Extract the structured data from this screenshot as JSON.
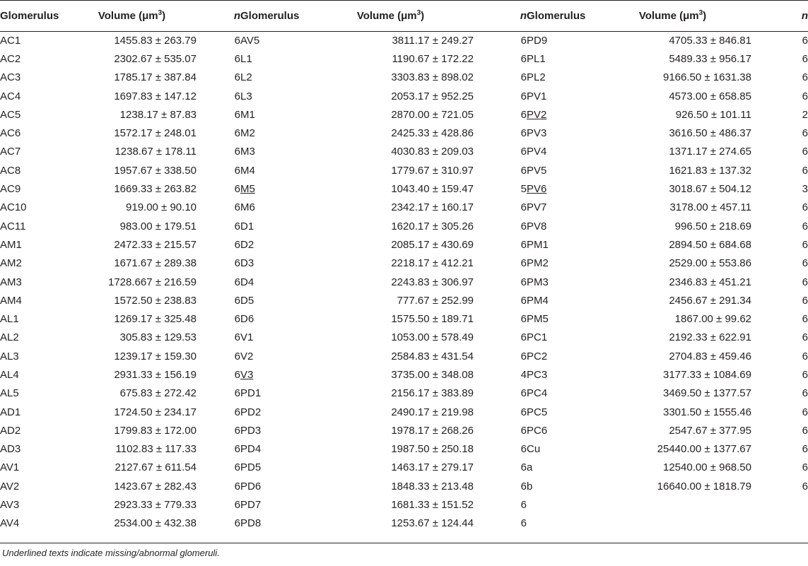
{
  "header": {
    "glomerulus": "Glomerulus",
    "volume": "Volume (μm",
    "volume_sup": "3",
    "volume_close": ")",
    "n": "n"
  },
  "columns": [
    [
      {
        "g": "AC1",
        "v": "1455.83 ± 263.79",
        "n": "6",
        "u": false
      },
      {
        "g": "AC2",
        "v": "2302.67 ± 535.07",
        "n": "6",
        "u": false
      },
      {
        "g": "AC3",
        "v": "1785.17 ± 387.84",
        "n": "6",
        "u": false
      },
      {
        "g": "AC4",
        "v": "1697.83 ± 147.12",
        "n": "6",
        "u": false
      },
      {
        "g": "AC5",
        "v": "1238.17 ± 87.83",
        "n": "6",
        "u": false
      },
      {
        "g": "AC6",
        "v": "1572.17 ± 248.01",
        "n": "6",
        "u": false
      },
      {
        "g": "AC7",
        "v": "1238.67 ± 178.11",
        "n": "6",
        "u": false
      },
      {
        "g": "AC8",
        "v": "1957.67 ± 338.50",
        "n": "6",
        "u": false
      },
      {
        "g": "AC9",
        "v": "1669.33 ± 263.82",
        "n": "6",
        "u": false
      },
      {
        "g": "AC10",
        "v": "919.00 ± 90.10",
        "n": "6",
        "u": false
      },
      {
        "g": "AC11",
        "v": "983.00 ± 179.51",
        "n": "6",
        "u": false
      },
      {
        "g": "AM1",
        "v": "2472.33 ± 215.57",
        "n": "6",
        "u": false
      },
      {
        "g": "AM2",
        "v": "1671.67 ± 289.38",
        "n": "6",
        "u": false
      },
      {
        "g": "AM3",
        "v": "1728.667 ± 216.59",
        "n": "6",
        "u": false
      },
      {
        "g": "AM4",
        "v": "1572.50 ± 238.83",
        "n": "6",
        "u": false
      },
      {
        "g": "AL1",
        "v": "1269.17 ± 325.48",
        "n": "6",
        "u": false
      },
      {
        "g": "AL2",
        "v": "305.83 ± 129.53",
        "n": "6",
        "u": false
      },
      {
        "g": "AL3",
        "v": "1239.17 ± 159.30",
        "n": "6",
        "u": false
      },
      {
        "g": "AL4",
        "v": "2931.33 ± 156.19",
        "n": "6",
        "u": false
      },
      {
        "g": "AL5",
        "v": "675.83 ± 272.42",
        "n": "6",
        "u": false
      },
      {
        "g": "AD1",
        "v": "1724.50 ± 234.17",
        "n": "6",
        "u": false
      },
      {
        "g": "AD2",
        "v": "1799.83 ± 172.00",
        "n": "6",
        "u": false
      },
      {
        "g": "AD3",
        "v": "1102.83 ± 117.33",
        "n": "6",
        "u": false
      },
      {
        "g": "AV1",
        "v": "2127.67 ± 611.54",
        "n": "6",
        "u": false
      },
      {
        "g": "AV2",
        "v": "1423.67 ± 282.43",
        "n": "6",
        "u": false
      },
      {
        "g": "AV3",
        "v": "2923.33 ± 779.33",
        "n": "6",
        "u": false
      },
      {
        "g": "AV4",
        "v": "2534.00 ± 432.38",
        "n": "6",
        "u": false
      }
    ],
    [
      {
        "g": "AV5",
        "v": "3811.17 ± 249.27",
        "n": "6",
        "u": false
      },
      {
        "g": "L1",
        "v": "1190.67 ± 172.22",
        "n": "6",
        "u": false
      },
      {
        "g": "L2",
        "v": "3303.83 ± 898.02",
        "n": "6",
        "u": false
      },
      {
        "g": "L3",
        "v": "2053.17 ± 952.25",
        "n": "6",
        "u": false
      },
      {
        "g": "M1",
        "v": "2870.00 ± 721.05",
        "n": "6",
        "u": false
      },
      {
        "g": "M2",
        "v": "2425.33 ± 428.86",
        "n": "6",
        "u": false
      },
      {
        "g": "M3",
        "v": "4030.83 ± 209.03",
        "n": "6",
        "u": false
      },
      {
        "g": "M4",
        "v": "1779.67 ± 310.97",
        "n": "6",
        "u": false
      },
      {
        "g": "M5",
        "v": "1043.40 ± 159.47",
        "n": "5",
        "u": true
      },
      {
        "g": "M6",
        "v": "2342.17 ± 160.17",
        "n": "6",
        "u": false
      },
      {
        "g": "D1",
        "v": "1620.17 ± 305.26",
        "n": "6",
        "u": false
      },
      {
        "g": "D2",
        "v": "2085.17 ± 430.69",
        "n": "6",
        "u": false
      },
      {
        "g": "D3",
        "v": "2218.17 ± 412.21",
        "n": "6",
        "u": false
      },
      {
        "g": "D4",
        "v": "2243.83 ± 306.97",
        "n": "6",
        "u": false
      },
      {
        "g": "D5",
        "v": "777.67 ± 252.99",
        "n": "6",
        "u": false
      },
      {
        "g": "D6",
        "v": "1575.50 ± 189.71",
        "n": "6",
        "u": false
      },
      {
        "g": "V1",
        "v": "1053.00 ± 578.49",
        "n": "6",
        "u": false
      },
      {
        "g": "V2",
        "v": "2584.83 ± 431.54",
        "n": "6",
        "u": false
      },
      {
        "g": "V3",
        "v": "3735.00 ± 348.08",
        "n": "4",
        "u": true
      },
      {
        "g": "PD1",
        "v": "2156.17 ± 383.89",
        "n": "6",
        "u": false
      },
      {
        "g": "PD2",
        "v": "2490.17 ± 219.98",
        "n": "6",
        "u": false
      },
      {
        "g": "PD3",
        "v": "1978.17 ± 268.26",
        "n": "6",
        "u": false
      },
      {
        "g": "PD4",
        "v": "1987.50 ± 250.18",
        "n": "6",
        "u": false
      },
      {
        "g": "PD5",
        "v": "1463.17 ± 279.17",
        "n": "6",
        "u": false
      },
      {
        "g": "PD6",
        "v": "1848.33 ± 213.48",
        "n": "6",
        "u": false
      },
      {
        "g": "PD7",
        "v": "1681.33 ± 151.52",
        "n": "6",
        "u": false
      },
      {
        "g": "PD8",
        "v": "1253.67 ± 124.44",
        "n": "6",
        "u": false
      }
    ],
    [
      {
        "g": "PD9",
        "v": "4705.33 ± 846.81",
        "n": "6",
        "u": false
      },
      {
        "g": "PL1",
        "v": "5489.33 ± 956.17",
        "n": "6",
        "u": false
      },
      {
        "g": "PL2",
        "v": "9166.50 ± 1631.38",
        "n": "6",
        "u": false
      },
      {
        "g": "PV1",
        "v": "4573.00 ± 658.85",
        "n": "6",
        "u": false
      },
      {
        "g": "PV2",
        "v": "926.50 ± 101.11",
        "n": "2",
        "u": true
      },
      {
        "g": "PV3",
        "v": "3616.50 ± 486.37",
        "n": "6",
        "u": false
      },
      {
        "g": "PV4",
        "v": "1371.17 ± 274.65",
        "n": "6",
        "u": false
      },
      {
        "g": "PV5",
        "v": "1621.83 ± 137.32",
        "n": "6",
        "u": false
      },
      {
        "g": "PV6",
        "v": "3018.67 ± 504.12",
        "n": "3",
        "u": true
      },
      {
        "g": "PV7",
        "v": "3178.00 ± 457.11",
        "n": "6",
        "u": false
      },
      {
        "g": "PV8",
        "v": "996.50 ± 218.69",
        "n": "6",
        "u": false
      },
      {
        "g": "PM1",
        "v": "2894.50 ± 684.68",
        "n": "6",
        "u": false
      },
      {
        "g": "PM2",
        "v": "2529.00 ± 553.86",
        "n": "6",
        "u": false
      },
      {
        "g": "PM3",
        "v": "2346.83 ± 451.21",
        "n": "6",
        "u": false
      },
      {
        "g": "PM4",
        "v": "2456.67 ± 291.34",
        "n": "6",
        "u": false
      },
      {
        "g": "PM5",
        "v": "1867.00 ± 99.62",
        "n": "6",
        "u": false
      },
      {
        "g": "PC1",
        "v": "2192.33 ± 622.91",
        "n": "6",
        "u": false
      },
      {
        "g": "PC2",
        "v": "2704.83 ± 459.46",
        "n": "6",
        "u": false
      },
      {
        "g": "PC3",
        "v": "3177.33 ± 1084.69",
        "n": "6",
        "u": false
      },
      {
        "g": "PC4",
        "v": "3469.50 ± 1377.57",
        "n": "6",
        "u": false
      },
      {
        "g": "PC5",
        "v": "3301.50 ± 1555.46",
        "n": "6",
        "u": false
      },
      {
        "g": "PC6",
        "v": "2547.67 ± 377.95",
        "n": "6",
        "u": false
      },
      {
        "g": "Cu",
        "v": "25440.00 ± 1377.67",
        "n": "6",
        "u": false
      },
      {
        "g": "a",
        "v": "12540.00 ± 968.50",
        "n": "6",
        "u": false
      },
      {
        "g": "b",
        "v": "16640.00 ± 1818.79",
        "n": "6",
        "u": false
      },
      {
        "g": "",
        "v": "",
        "n": "",
        "u": false
      },
      {
        "g": "",
        "v": "",
        "n": "",
        "u": false
      }
    ]
  ],
  "footnote": "Underlined texts indicate missing/abnormal glomeruli."
}
